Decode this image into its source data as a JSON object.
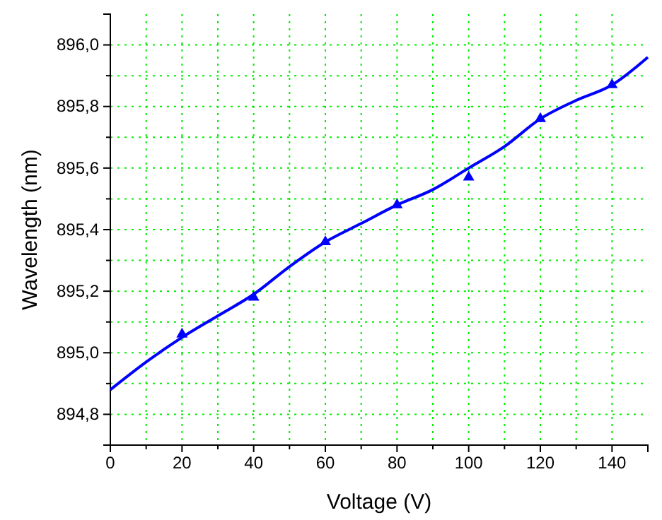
{
  "chart_data": {
    "type": "scatter",
    "xlabel": "Voltage (V)",
    "ylabel": "Wavelength (nm)",
    "xlim": [
      0,
      150
    ],
    "ylim": [
      894.7,
      896.1
    ],
    "xticks": [
      0,
      {
        "value": 10,
        "label": null
      },
      20,
      {
        "value": 30,
        "label": null
      },
      40,
      {
        "value": 50,
        "label": null
      },
      60,
      {
        "value": 70,
        "label": null
      },
      80,
      {
        "value": 90,
        "label": null
      },
      100,
      {
        "value": 110,
        "label": null
      },
      120,
      {
        "value": 130,
        "label": null
      },
      140
    ],
    "yticks": [
      {
        "value": 894.7,
        "label": null
      },
      {
        "value": 894.8,
        "label": "894,8"
      },
      {
        "value": 894.9,
        "label": null
      },
      {
        "value": 895.0,
        "label": "895,0"
      },
      {
        "value": 895.1,
        "label": null
      },
      {
        "value": 895.2,
        "label": "895,2"
      },
      {
        "value": 895.3,
        "label": null
      },
      {
        "value": 895.4,
        "label": "895,4"
      },
      {
        "value": 895.5,
        "label": null
      },
      {
        "value": 895.6,
        "label": "895,6"
      },
      {
        "value": 895.7,
        "label": null
      },
      {
        "value": 895.8,
        "label": "895,8"
      },
      {
        "value": 895.9,
        "label": null
      },
      {
        "value": 896.0,
        "label": "896,0"
      }
    ],
    "grid": true,
    "series": [
      {
        "marker": "triangle",
        "color": "#0000ff",
        "x": [
          20,
          40,
          60,
          80,
          100,
          120,
          140
        ],
        "values": [
          895.06,
          895.18,
          895.36,
          895.48,
          895.57,
          895.76,
          895.87
        ]
      },
      {
        "type": "line",
        "marker": "none",
        "color": "#0000ff",
        "x": [
          0,
          10,
          20,
          30,
          40,
          50,
          60,
          70,
          80,
          90,
          100,
          110,
          120,
          130,
          140,
          150
        ],
        "values": [
          894.88,
          894.97,
          895.05,
          895.12,
          895.19,
          895.28,
          895.36,
          895.42,
          895.48,
          895.53,
          895.6,
          895.67,
          895.76,
          895.82,
          895.87,
          895.96
        ]
      }
    ]
  }
}
